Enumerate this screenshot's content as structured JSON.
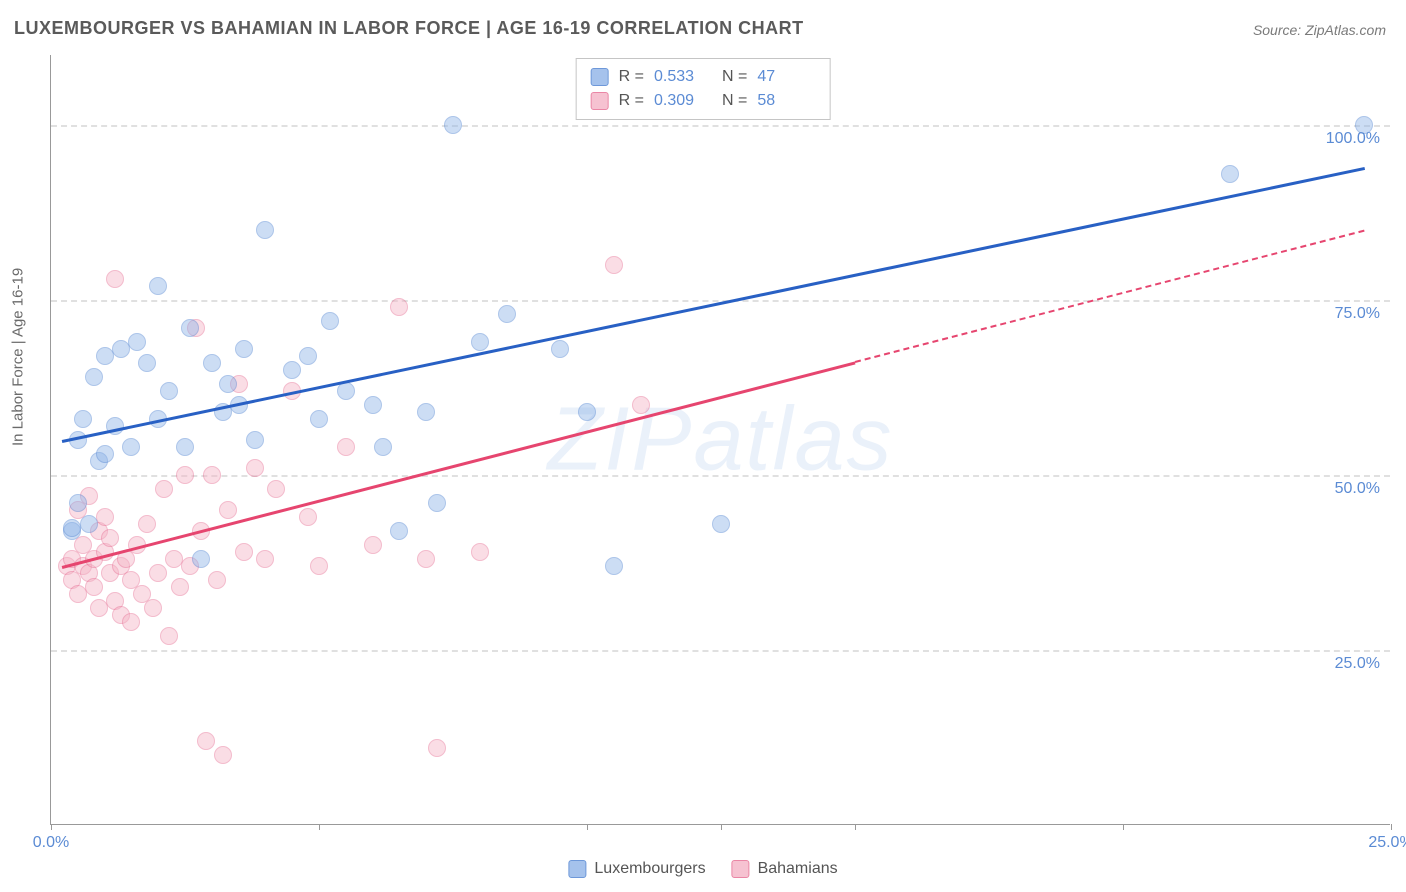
{
  "title": "LUXEMBOURGER VS BAHAMIAN IN LABOR FORCE | AGE 16-19 CORRELATION CHART",
  "source": "Source: ZipAtlas.com",
  "ylabel": "In Labor Force | Age 16-19",
  "watermark": "ZIPatlas",
  "chart": {
    "type": "scatter",
    "xlim": [
      0,
      25
    ],
    "ylim": [
      0,
      110
    ],
    "yticks": [
      25,
      50,
      75,
      100
    ],
    "ytick_labels": [
      "25.0%",
      "50.0%",
      "75.0%",
      "100.0%"
    ],
    "xticks": [
      0,
      12.5,
      25
    ],
    "xtick_labels": [
      "0.0%",
      "",
      "25.0%"
    ],
    "xtick_minor": [
      5,
      10,
      15,
      20
    ],
    "grid_color": "#e0e0e0",
    "background_color": "#ffffff",
    "marker_radius": 9,
    "marker_opacity": 0.45,
    "series": {
      "lux": {
        "label": "Luxembourgers",
        "fill": "#8fb4e8",
        "stroke": "#4a7fd0",
        "line_color": "#2860c4",
        "R": "0.533",
        "N": "47",
        "trend": {
          "x1": 0.2,
          "y1": 55,
          "x2": 24.5,
          "y2": 94,
          "dash_from_x": null
        },
        "points": [
          [
            0.4,
            42
          ],
          [
            0.4,
            42.5
          ],
          [
            0.5,
            55
          ],
          [
            0.5,
            46
          ],
          [
            0.6,
            58
          ],
          [
            0.7,
            43
          ],
          [
            0.8,
            64
          ],
          [
            0.9,
            52
          ],
          [
            1.0,
            53
          ],
          [
            1.0,
            67
          ],
          [
            1.2,
            57
          ],
          [
            1.3,
            68
          ],
          [
            1.5,
            54
          ],
          [
            1.6,
            69
          ],
          [
            1.8,
            66
          ],
          [
            2.0,
            58
          ],
          [
            2.0,
            77
          ],
          [
            2.2,
            62
          ],
          [
            2.5,
            54
          ],
          [
            2.6,
            71
          ],
          [
            2.8,
            38
          ],
          [
            3.0,
            66
          ],
          [
            3.2,
            59
          ],
          [
            3.3,
            63
          ],
          [
            3.5,
            60
          ],
          [
            3.6,
            68
          ],
          [
            3.8,
            55
          ],
          [
            4.0,
            85
          ],
          [
            4.5,
            65
          ],
          [
            4.8,
            67
          ],
          [
            5.0,
            58
          ],
          [
            5.2,
            72
          ],
          [
            5.5,
            62
          ],
          [
            6.0,
            60
          ],
          [
            6.2,
            54
          ],
          [
            6.5,
            42
          ],
          [
            7.0,
            59
          ],
          [
            7.2,
            46
          ],
          [
            7.5,
            100
          ],
          [
            8.0,
            69
          ],
          [
            8.5,
            73
          ],
          [
            9.5,
            68
          ],
          [
            10.0,
            59
          ],
          [
            10.5,
            37
          ],
          [
            12.5,
            43
          ],
          [
            22.0,
            93
          ],
          [
            24.5,
            100
          ]
        ]
      },
      "bah": {
        "label": "Bahamians",
        "fill": "#f4b4c6",
        "stroke": "#e6698f",
        "line_color": "#e6456f",
        "R": "0.309",
        "N": "58",
        "trend": {
          "x1": 0.2,
          "y1": 37,
          "x2": 24.5,
          "y2": 85,
          "dash_from_x": 15
        },
        "points": [
          [
            0.3,
            37
          ],
          [
            0.4,
            35
          ],
          [
            0.4,
            38
          ],
          [
            0.5,
            45
          ],
          [
            0.5,
            33
          ],
          [
            0.6,
            40
          ],
          [
            0.6,
            37
          ],
          [
            0.7,
            36
          ],
          [
            0.7,
            47
          ],
          [
            0.8,
            38
          ],
          [
            0.8,
            34
          ],
          [
            0.9,
            42
          ],
          [
            0.9,
            31
          ],
          [
            1.0,
            39
          ],
          [
            1.0,
            44
          ],
          [
            1.1,
            36
          ],
          [
            1.1,
            41
          ],
          [
            1.2,
            78
          ],
          [
            1.2,
            32
          ],
          [
            1.3,
            37
          ],
          [
            1.3,
            30
          ],
          [
            1.4,
            38
          ],
          [
            1.5,
            35
          ],
          [
            1.5,
            29
          ],
          [
            1.6,
            40
          ],
          [
            1.7,
            33
          ],
          [
            1.8,
            43
          ],
          [
            1.9,
            31
          ],
          [
            2.0,
            36
          ],
          [
            2.1,
            48
          ],
          [
            2.2,
            27
          ],
          [
            2.3,
            38
          ],
          [
            2.4,
            34
          ],
          [
            2.5,
            50
          ],
          [
            2.6,
            37
          ],
          [
            2.7,
            71
          ],
          [
            2.8,
            42
          ],
          [
            2.9,
            12
          ],
          [
            3.0,
            50
          ],
          [
            3.1,
            35
          ],
          [
            3.2,
            10
          ],
          [
            3.3,
            45
          ],
          [
            3.5,
            63
          ],
          [
            3.6,
            39
          ],
          [
            3.8,
            51
          ],
          [
            4.0,
            38
          ],
          [
            4.2,
            48
          ],
          [
            4.5,
            62
          ],
          [
            4.8,
            44
          ],
          [
            5.0,
            37
          ],
          [
            5.5,
            54
          ],
          [
            6.0,
            40
          ],
          [
            6.5,
            74
          ],
          [
            7.0,
            38
          ],
          [
            7.2,
            11
          ],
          [
            8.0,
            39
          ],
          [
            10.5,
            80
          ],
          [
            11.0,
            60
          ]
        ]
      }
    }
  },
  "legend_bottom": [
    {
      "key": "lux",
      "label": "Luxembourgers"
    },
    {
      "key": "bah",
      "label": "Bahamians"
    }
  ]
}
